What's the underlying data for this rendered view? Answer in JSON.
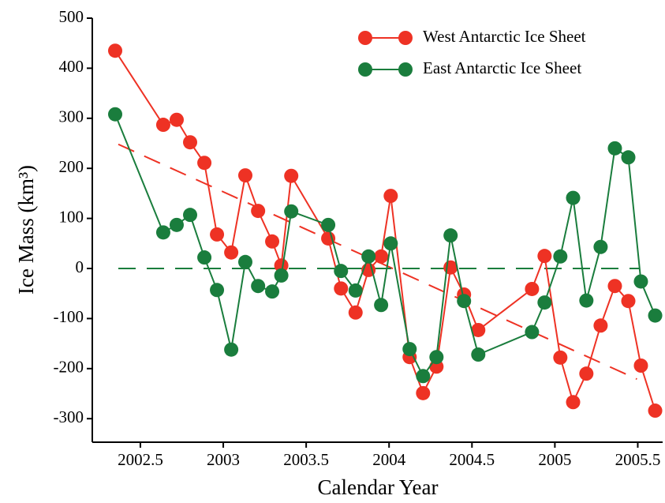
{
  "chart_data": {
    "type": "line",
    "x_label": "Calendar Year",
    "y_label": "Ice Mass (km³)",
    "x": [
      2002.348,
      2002.638,
      2002.719,
      2002.8,
      2002.886,
      2002.962,
      2003.048,
      2003.133,
      2003.21,
      2003.295,
      2003.35,
      2003.41,
      2003.633,
      2003.71,
      2003.798,
      2003.876,
      2003.952,
      2004.01,
      2004.124,
      2004.205,
      2004.286,
      2004.371,
      2004.452,
      2004.538,
      2004.862,
      2004.938,
      2005.033,
      2005.11,
      2005.19,
      2005.276,
      2005.362,
      2005.443,
      2005.519,
      2005.605
    ],
    "series": [
      {
        "name": "West Antarctic Ice Sheet",
        "color": "#ee3224",
        "values": [
          435,
          287,
          297,
          252,
          211,
          68,
          32,
          186,
          115,
          54,
          6,
          185,
          60,
          -40,
          -88,
          -3,
          24,
          145,
          -177,
          -249,
          -196,
          2,
          -52,
          -123,
          -41,
          25,
          -178,
          -267,
          -210,
          -114,
          -35,
          -65,
          -194,
          -284
        ]
      },
      {
        "name": "East Antarctic Ice Sheet",
        "color": "#1a7d3d",
        "values": [
          308,
          72,
          87,
          107,
          22,
          -43,
          -162,
          13,
          -35,
          -46,
          -14,
          114,
          87,
          -5,
          -44,
          24,
          -73,
          50,
          -161,
          -215,
          -177,
          66,
          -65,
          -172,
          -127,
          -68,
          24,
          141,
          -64,
          43,
          240,
          222,
          -26,
          -94
        ]
      }
    ],
    "trend_lines": [
      {
        "color": "#ee3224",
        "x": [
          2002.367,
          2005.495
        ],
        "values": [
          248,
          -221
        ]
      },
      {
        "color": "#1a7d3d",
        "x": [
          2002.367,
          2005.51
        ],
        "values": [
          0,
          0
        ]
      }
    ],
    "xlim": [
      2002.21,
      2005.65
    ],
    "ylim": [
      -347,
      500
    ],
    "xticks": [
      2002.5,
      2003,
      2003.5,
      2004,
      2004.5,
      2005,
      2005.5
    ],
    "yticks": [
      -300,
      -200,
      -100,
      0,
      100,
      200,
      300,
      400,
      500
    ],
    "legend": "upper right"
  }
}
